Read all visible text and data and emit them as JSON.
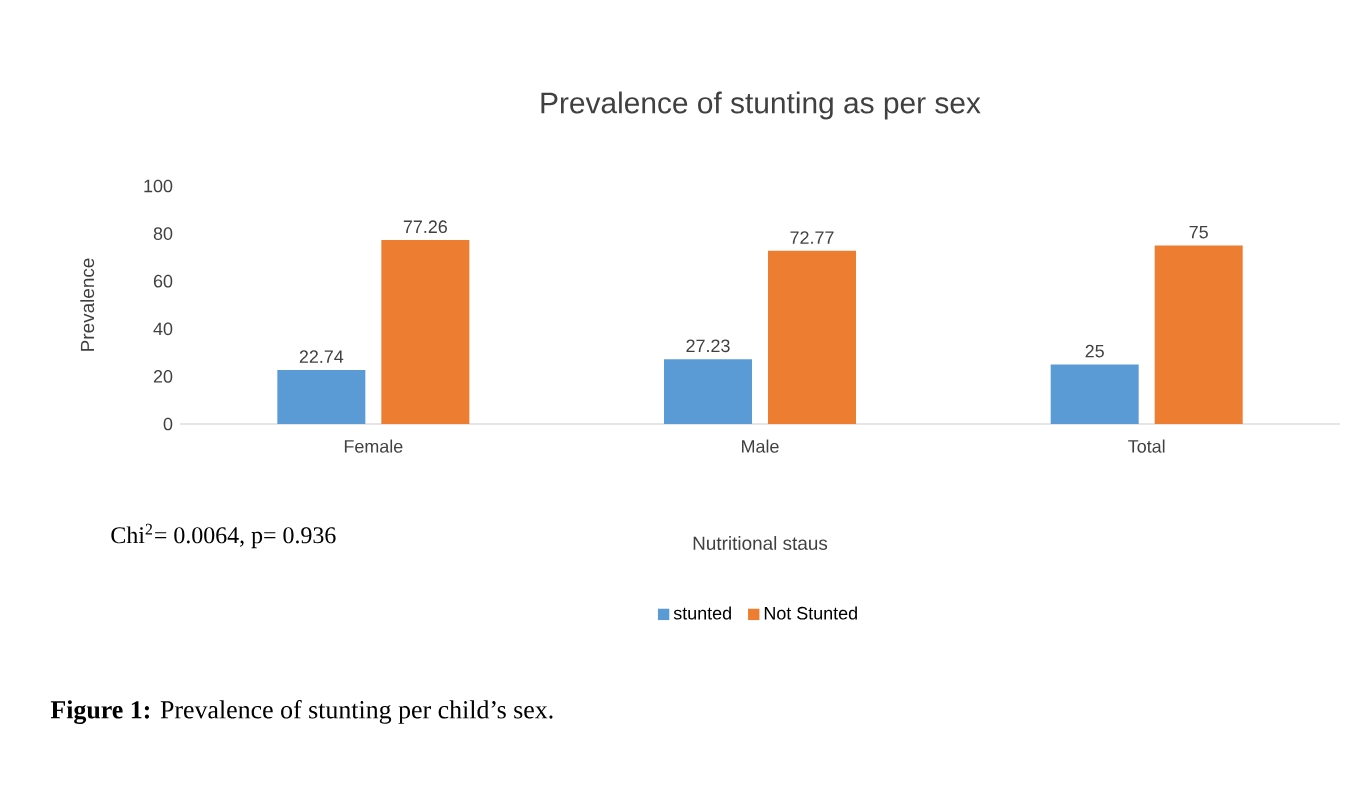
{
  "chart_data": {
    "type": "bar",
    "title": "Prevalence of stunting as per sex",
    "xlabel": "Nutritional staus",
    "ylabel": "Prevalence",
    "categories": [
      "Female",
      "Male",
      "Total"
    ],
    "series": [
      {
        "name": "stunted",
        "color": "#5b9bd5",
        "values": [
          22.74,
          27.23,
          25
        ]
      },
      {
        "name": "Not Stunted",
        "color": "#ed7d31",
        "values": [
          77.26,
          72.77,
          75
        ]
      }
    ],
    "ylim": [
      0,
      100
    ],
    "yticks": [
      0,
      20,
      40,
      60,
      80,
      100
    ],
    "data_labels": true,
    "legend": "bottom",
    "annotations": [
      "Chi$^{2}$= 0.0064, p= 0.936",
      "**Figure 1:** Prevalence of stunting per child’s sex."
    ]
  }
}
